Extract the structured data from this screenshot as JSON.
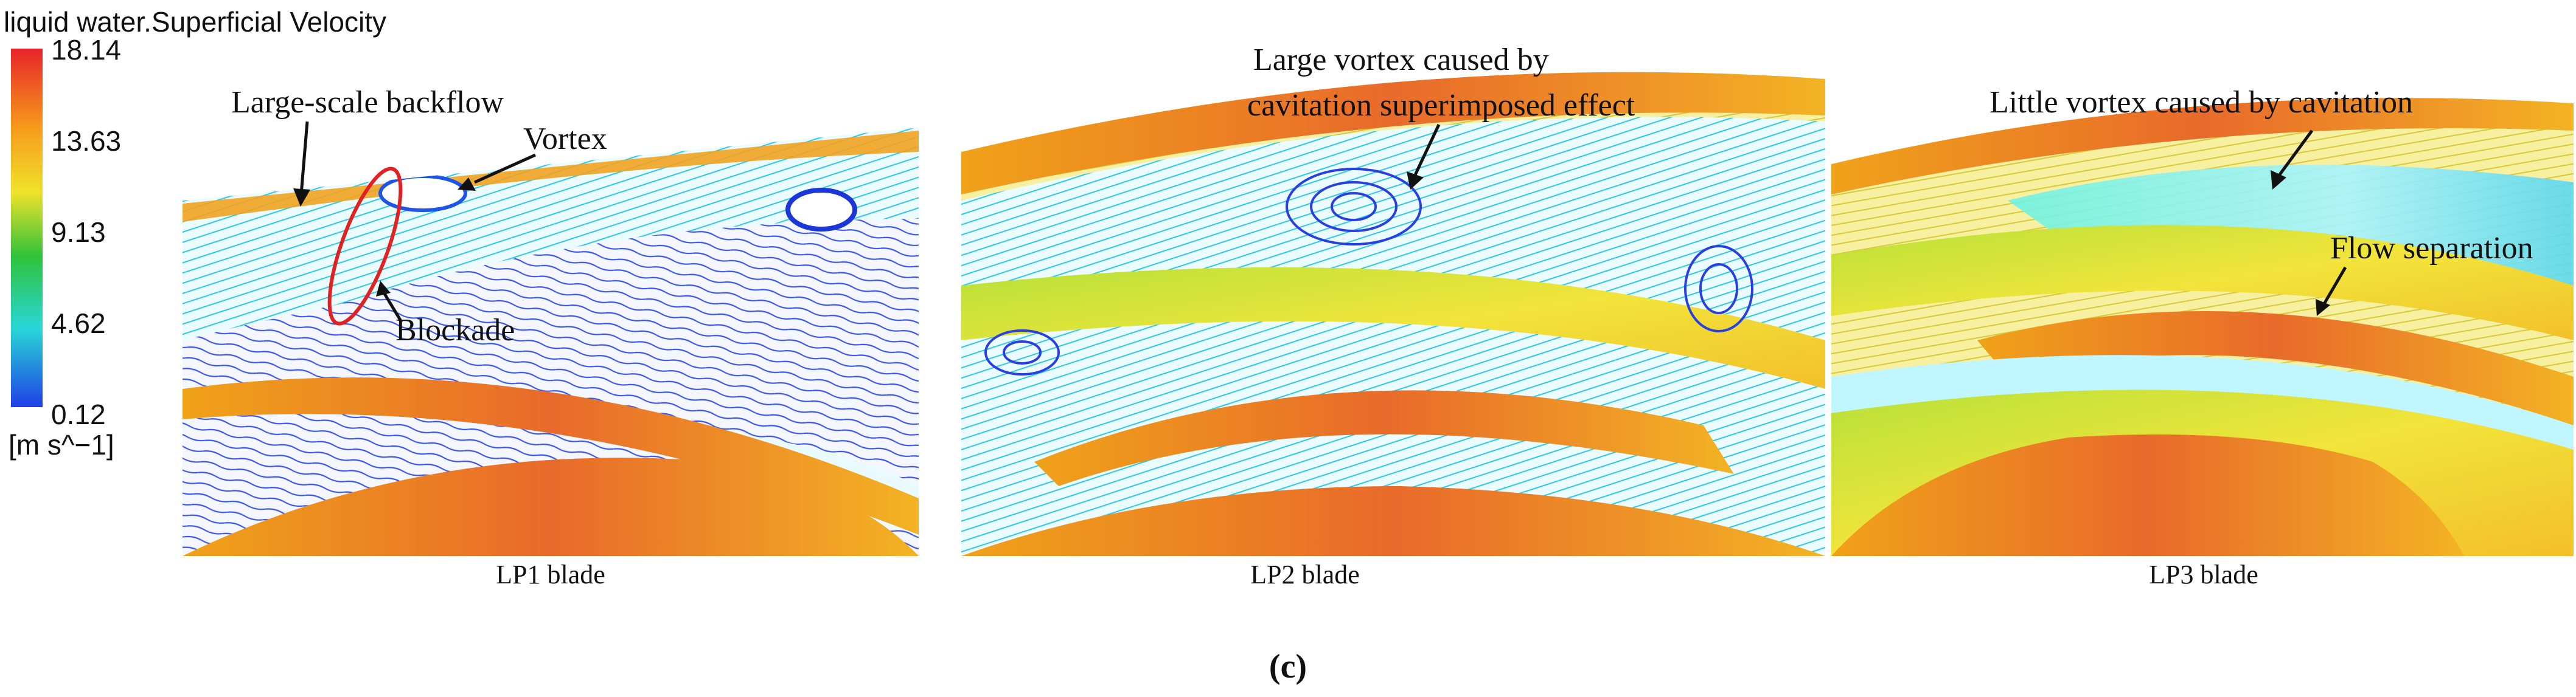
{
  "colorbar": {
    "title": "liquid water.Superficial Velocity",
    "ticks": [
      "18.14",
      "13.63",
      "9.13",
      "4.62",
      "0.12"
    ],
    "unit": "[m s^−1]",
    "range": [
      0.12,
      18.14
    ],
    "colors": [
      "#e8242a",
      "#f79a1b",
      "#f0e22a",
      "#2fc23a",
      "#28d7d7",
      "#1f3fe6"
    ]
  },
  "panels": [
    {
      "caption": "LP1 blade",
      "annotations": [
        "Large-scale backflow",
        "Vortex",
        "Blockade"
      ]
    },
    {
      "caption": "LP2 blade",
      "annotations": [
        "Large vortex  caused by",
        "cavitation superimposed effect"
      ]
    },
    {
      "caption": "LP3 blade",
      "annotations": [
        "Little vortex  caused by cavitation",
        "Flow separation"
      ]
    }
  ],
  "figure_label": "(c)"
}
